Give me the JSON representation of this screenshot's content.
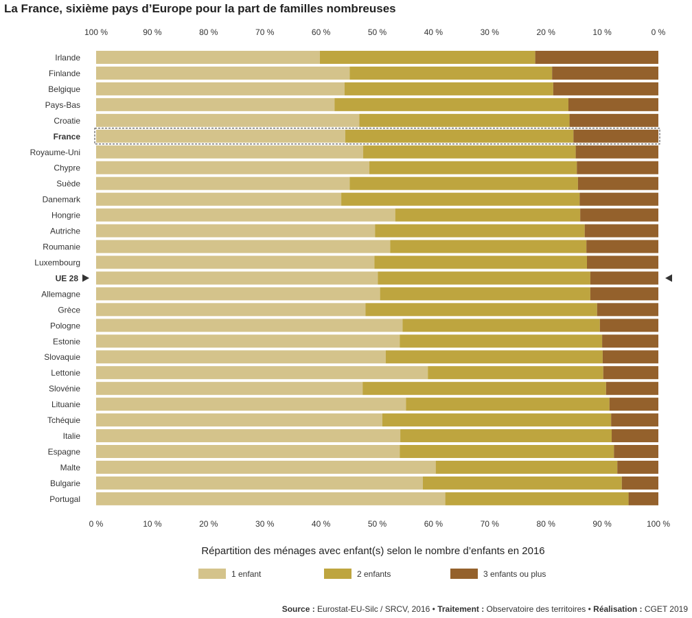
{
  "title": "La France, sixième pays d’Europe pour la part de familles nombreuses",
  "chart_data": {
    "type": "bar",
    "orientation": "horizontal",
    "stacked": true,
    "percent": true,
    "xlabel": "Répartition des ménages avec enfant(s) selon le nombre d’enfants en 2016",
    "xlim": [
      0,
      100
    ],
    "ticks_bottom": [
      "0 %",
      "10 %",
      "20 %",
      "30 %",
      "40 %",
      "50 %",
      "60 %",
      "70 %",
      "80 %",
      "90 %",
      "100 %"
    ],
    "ticks_top": [
      "100 %",
      "90 %",
      "80 %",
      "70 %",
      "60 %",
      "50 %",
      "40 %",
      "30 %",
      "20 %",
      "10 %",
      "0 %"
    ],
    "legend_position": "bottom",
    "highlight": "France",
    "reference": "UE 28",
    "categories": [
      "Irlande",
      "Finlande",
      "Belgique",
      "Pays-Bas",
      "Croatie",
      "France",
      "Royaume-Uni",
      "Chypre",
      "Suède",
      "Danemark",
      "Hongrie",
      "Autriche",
      "Roumanie",
      "Luxembourg",
      "UE 28",
      "Allemagne",
      "Grèce",
      "Pologne",
      "Estonie",
      "Slovaquie",
      "Lettonie",
      "Slovénie",
      "Lituanie",
      "Tchéquie",
      "Italie",
      "Espagne",
      "Malte",
      "Bulgarie",
      "Portugal"
    ],
    "series": [
      {
        "name": "1 enfant",
        "color": "#d4c38b",
        "values": [
          39.8,
          45.1,
          44.2,
          42.4,
          46.8,
          44.3,
          47.5,
          48.6,
          45.1,
          43.6,
          53.2,
          49.6,
          52.3,
          49.5,
          50.1,
          50.5,
          47.9,
          54.5,
          54.0,
          51.5,
          59.0,
          47.4,
          55.1,
          50.9,
          54.1,
          54.0,
          60.4,
          58.1,
          62.1
        ]
      },
      {
        "name": "2 enfants",
        "color": "#bea53f",
        "values": [
          38.3,
          36.0,
          37.1,
          41.6,
          37.4,
          40.6,
          37.8,
          36.9,
          40.6,
          42.4,
          32.9,
          37.3,
          34.9,
          37.8,
          37.8,
          37.4,
          41.2,
          35.1,
          36.0,
          38.6,
          31.2,
          43.3,
          36.2,
          40.7,
          37.6,
          38.1,
          32.3,
          35.4,
          32.6
        ]
      },
      {
        "name": "3 enfants ou plus",
        "color": "#94612c",
        "values": [
          21.9,
          18.9,
          18.7,
          16.0,
          15.8,
          15.1,
          14.7,
          14.5,
          14.3,
          14.0,
          13.9,
          13.1,
          12.8,
          12.7,
          12.1,
          12.1,
          10.9,
          10.4,
          10.0,
          9.9,
          9.8,
          9.3,
          8.7,
          8.4,
          8.3,
          7.9,
          7.3,
          6.5,
          5.3
        ]
      }
    ]
  },
  "source": {
    "source_label": "Source :",
    "source_text": " Eurostat-EU-Silc / SRCV, 2016 • ",
    "treatment_label": "Traitement :",
    "treatment_text": " Observatoire des territoires • ",
    "realisation_label": "Réalisation :",
    "realisation_text": " CGET 2019"
  }
}
